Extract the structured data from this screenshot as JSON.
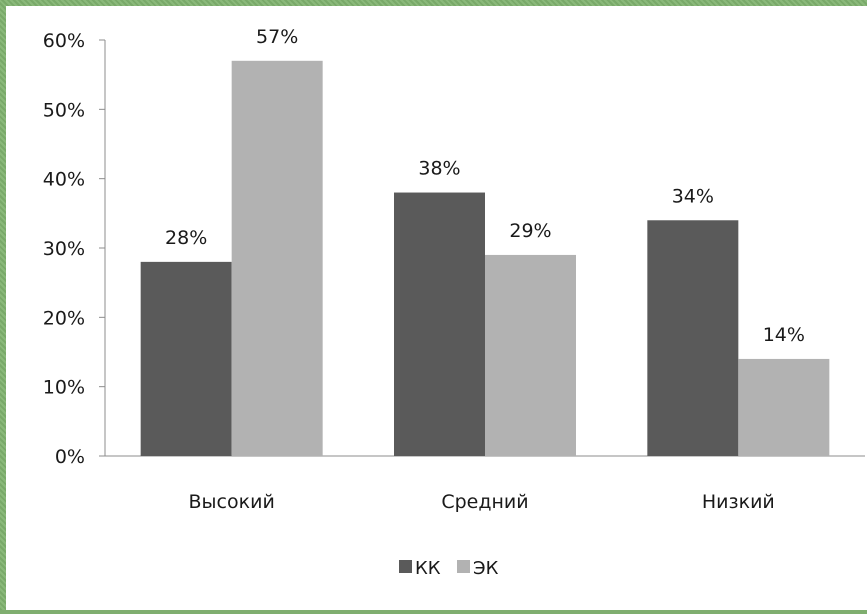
{
  "chart_data": {
    "type": "bar",
    "categories": [
      "Высокий",
      "Средний",
      "Низкий"
    ],
    "series": [
      {
        "name": "КК",
        "values": [
          28,
          38,
          34
        ],
        "labels": [
          "28%",
          "38%",
          "34%"
        ],
        "color": "#5a5a5a"
      },
      {
        "name": "ЭК",
        "values": [
          57,
          29,
          14
        ],
        "labels": [
          "57%",
          "29%",
          "14%"
        ],
        "color": "#b2b2b2"
      }
    ],
    "ylim": [
      0,
      60
    ],
    "yticks": [
      0,
      10,
      20,
      30,
      40,
      50,
      60
    ],
    "ytick_labels": [
      "0%",
      "10%",
      "20%",
      "30%",
      "40%",
      "50%",
      "60%"
    ],
    "grid": false,
    "legend": "bottom"
  }
}
